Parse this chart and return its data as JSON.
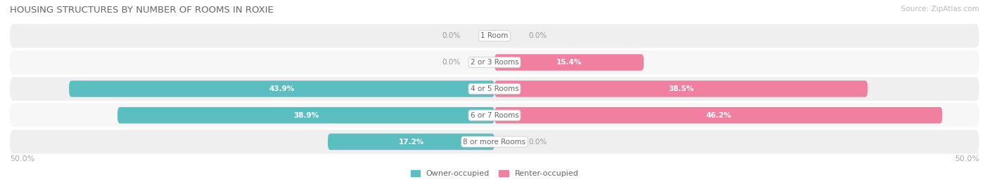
{
  "title": "HOUSING STRUCTURES BY NUMBER OF ROOMS IN ROXIE",
  "source": "Source: ZipAtlas.com",
  "categories": [
    "1 Room",
    "2 or 3 Rooms",
    "4 or 5 Rooms",
    "6 or 7 Rooms",
    "8 or more Rooms"
  ],
  "owner_values": [
    0.0,
    0.0,
    43.9,
    38.9,
    17.2
  ],
  "renter_values": [
    0.0,
    15.4,
    38.5,
    46.2,
    0.0
  ],
  "owner_color": "#5bbfc2",
  "renter_color": "#f07fa0",
  "row_bg_even": "#efefef",
  "row_bg_odd": "#f7f7f7",
  "max_val": 50.0,
  "axis_left_label": "50.0%",
  "axis_right_label": "50.0%",
  "title_fontsize": 9.5,
  "source_fontsize": 7.5,
  "bar_label_fontsize": 7.5,
  "cat_label_fontsize": 7.5,
  "axis_label_fontsize": 8,
  "legend_fontsize": 8
}
